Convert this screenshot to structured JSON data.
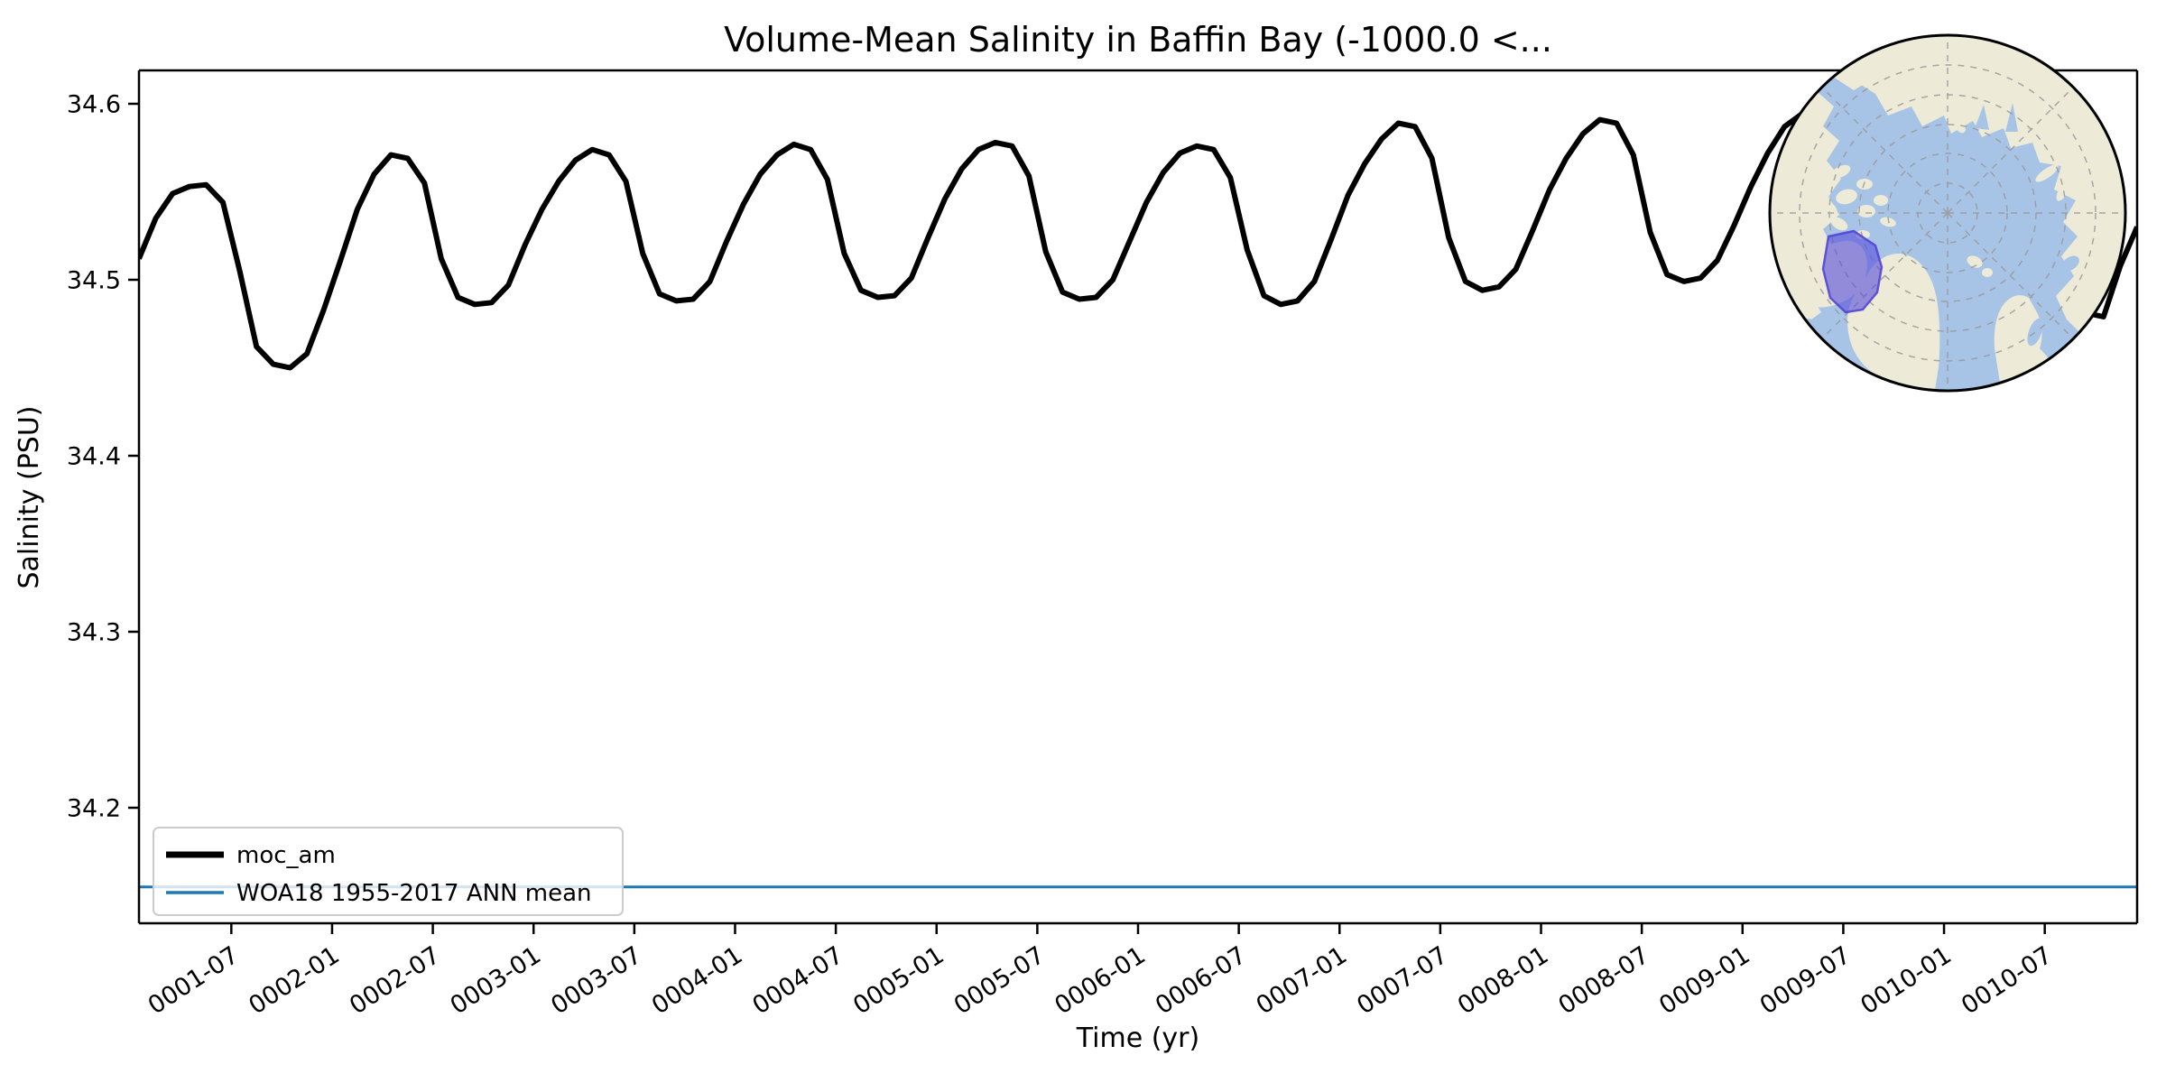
{
  "figure": {
    "background": "#ffffff",
    "title": "Volume-Mean Salinity in Baffin Bay (-1000.0 <..."
  },
  "axes": {
    "xlabel": "Time (yr)",
    "ylabel": "Salinity (PSU)",
    "x_tick_labels": [
      "0001-07",
      "0002-01",
      "0002-07",
      "0003-01",
      "0003-07",
      "0004-01",
      "0004-07",
      "0005-01",
      "0005-07",
      "0006-01",
      "0006-07",
      "0007-01",
      "0007-07",
      "0008-01",
      "0008-07",
      "0009-01",
      "0009-07",
      "0010-01",
      "0010-07"
    ],
    "y_tick_labels": [
      "34.2",
      "34.3",
      "34.4",
      "34.5",
      "34.6"
    ]
  },
  "legend": {
    "entries": [
      {
        "label": "moc_am",
        "color": "#000000",
        "linewidth": 7
      },
      {
        "label": "WOA18 1955-2017 ANN mean",
        "color": "#1f77b4",
        "linewidth": 3.5
      }
    ]
  },
  "chart_data": {
    "type": "line",
    "title": "Volume-Mean Salinity in Baffin Bay (-1000.0 <...",
    "xlabel": "Time (yr)",
    "ylabel": "Salinity (PSU)",
    "x_start": "0001-01",
    "x_end": "0010-12",
    "x_step_months": 1,
    "x_tick_labels": [
      "0001-07",
      "0002-01",
      "0002-07",
      "0003-01",
      "0003-07",
      "0004-01",
      "0004-07",
      "0005-01",
      "0005-07",
      "0006-01",
      "0006-07",
      "0007-01",
      "0007-07",
      "0008-01",
      "0008-07",
      "0009-01",
      "0009-07",
      "0010-01",
      "0010-07"
    ],
    "y_ticks": [
      34.2,
      34.3,
      34.4,
      34.5,
      34.6
    ],
    "ylim": [
      34.134,
      34.618
    ],
    "grid": false,
    "legend_position": "lower left",
    "series": [
      {
        "name": "moc_am",
        "type": "line",
        "color": "#000000",
        "monthly_values": [
          34.512,
          34.535,
          34.549,
          34.553,
          34.554,
          34.544,
          34.505,
          34.462,
          34.452,
          34.45,
          34.458,
          34.483,
          34.511,
          34.54,
          34.56,
          34.571,
          34.569,
          34.555,
          34.512,
          34.49,
          34.486,
          34.487,
          34.497,
          34.52,
          34.54,
          34.556,
          34.568,
          34.574,
          34.571,
          34.556,
          34.515,
          34.492,
          34.488,
          34.489,
          34.499,
          34.522,
          34.543,
          34.56,
          34.571,
          34.577,
          34.574,
          34.557,
          34.515,
          34.494,
          34.49,
          34.491,
          34.501,
          34.524,
          34.546,
          34.563,
          34.574,
          34.578,
          34.576,
          34.559,
          34.516,
          34.493,
          34.489,
          34.49,
          34.5,
          34.522,
          34.544,
          34.561,
          34.572,
          34.576,
          34.574,
          34.558,
          34.517,
          34.491,
          34.486,
          34.488,
          34.499,
          34.523,
          34.548,
          34.566,
          34.58,
          34.589,
          34.587,
          34.569,
          34.524,
          34.499,
          34.494,
          34.496,
          34.506,
          34.528,
          34.551,
          34.569,
          34.583,
          34.591,
          34.589,
          34.571,
          34.527,
          34.503,
          34.499,
          34.501,
          34.511,
          34.531,
          34.553,
          34.572,
          34.587,
          34.594,
          34.591,
          34.572,
          34.528,
          34.5,
          34.493,
          34.494,
          34.504,
          34.526,
          34.549,
          34.568,
          34.583,
          34.591,
          34.588,
          34.569,
          34.524,
          34.493,
          34.481,
          34.479,
          34.508,
          34.53
        ]
      },
      {
        "name": "WOA18 1955-2017 ANN mean",
        "type": "hline",
        "color": "#1f77b4",
        "value": 34.155
      }
    ]
  },
  "inset_map": {
    "name": "arctic-orthographic-inset",
    "region_label": "Baffin Bay",
    "ocean_color": "#a7c4e7",
    "land_color": "#edebd8",
    "region_fill": "#5b50dc",
    "region_fill_opacity": 0.62,
    "region_border": "#4d41d0",
    "graticule_color": "#999999",
    "outline_color": "#000000"
  }
}
